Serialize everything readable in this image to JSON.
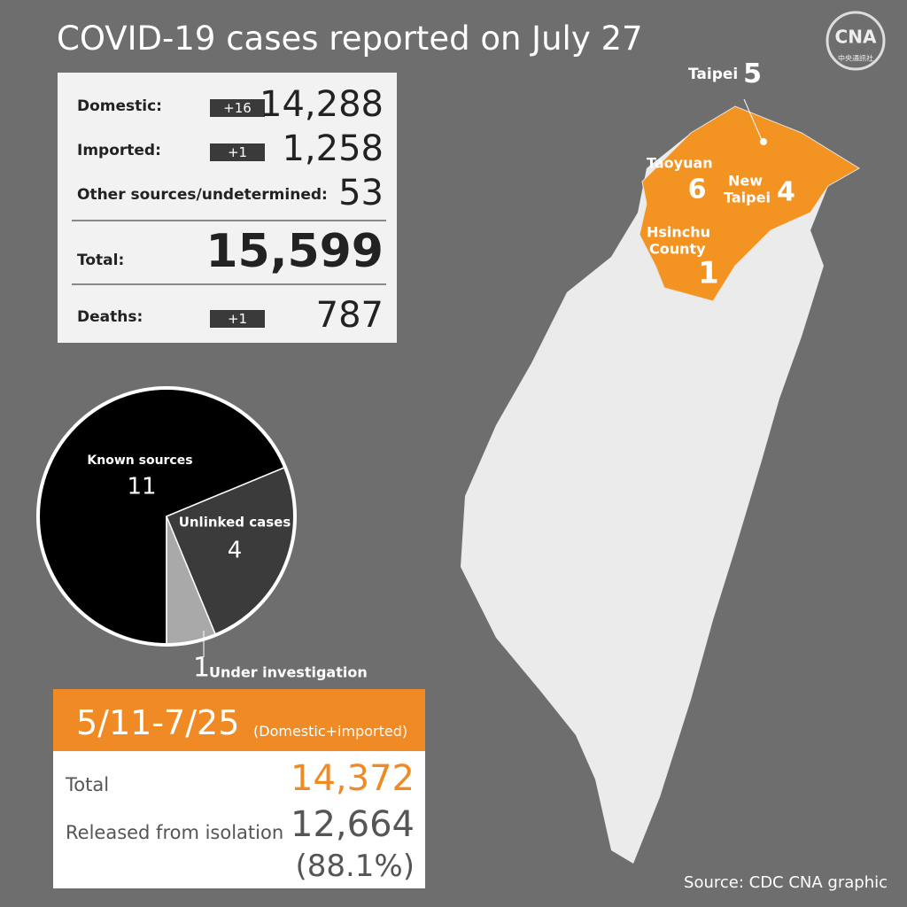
{
  "title": "COVID-19 cases reported on July 27",
  "logo": {
    "mark": "CNA",
    "name": "中央通訊社"
  },
  "stats": {
    "rows": [
      {
        "label": "Domestic:",
        "change": "+16",
        "value": "14,288"
      },
      {
        "label": "Imported:",
        "change": "+1",
        "value": "1,258"
      },
      {
        "label": "Other sources/undetermined:",
        "value": "53"
      },
      {
        "label": "Total:",
        "value": "15,599"
      },
      {
        "label": "Deaths:",
        "change": "+1",
        "value": "787"
      }
    ]
  },
  "chart_data": {
    "type": "pie",
    "categories": [
      "Known sources",
      "Unlinked cases",
      "Under investigation"
    ],
    "values": [
      11,
      4,
      1
    ],
    "colors": [
      "#000000",
      "#3b3b3b",
      "#a9a9a9"
    ]
  },
  "map": {
    "regions": [
      {
        "label_lines": [
          "Taipei"
        ],
        "value": "5"
      },
      {
        "label_lines": [
          "Taoyuan"
        ],
        "value": "6"
      },
      {
        "label_lines": [
          "New",
          "Taipei"
        ],
        "value": "4"
      },
      {
        "label_lines": [
          "Hsinchu",
          "County"
        ],
        "value": "1"
      }
    ]
  },
  "summary": {
    "period": "5/11-7/25",
    "note": "(Domestic+imported)",
    "rows": [
      {
        "label": "Total",
        "value": "14,372"
      },
      {
        "label": "Released from isolation",
        "value": "12,664",
        "share": "(88.1%)"
      }
    ]
  },
  "source": "Source: CDC  CNA graphic"
}
